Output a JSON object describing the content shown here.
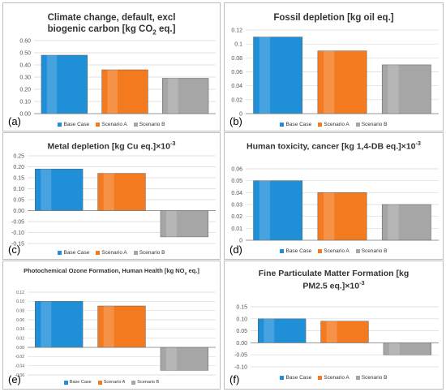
{
  "colors": {
    "base": "#1f8fd8",
    "a": "#f47a1f",
    "b": "#a6a6a6"
  },
  "legend": [
    "Base Case",
    "Scenario A",
    "Scenario B"
  ],
  "chart_data": [
    {
      "type": "bar",
      "panel_label": "(a)",
      "title_main": "Climate change, default, excl biogenic carbon [kg CO",
      "title_sub": "2",
      "title_end": " eq.]",
      "series": [
        {
          "name": "Base Case",
          "values": [
            0.48
          ]
        },
        {
          "name": "Scenario A",
          "values": [
            0.36
          ]
        },
        {
          "name": "Scenario B",
          "values": [
            0.29
          ]
        }
      ],
      "ylim": [
        0,
        0.6
      ],
      "yticks": [
        "0.00",
        "0.10",
        "0.20",
        "0.30",
        "0.40",
        "0.50",
        "0.60"
      ],
      "ystep": 0.1
    },
    {
      "type": "bar",
      "panel_label": "(b)",
      "title_main": "Fossil depletion [kg oil eq.]",
      "title_sub": "",
      "title_end": "",
      "series": [
        {
          "name": "Base Case",
          "values": [
            0.11
          ]
        },
        {
          "name": "Scenario A",
          "values": [
            0.09
          ]
        },
        {
          "name": "Scenario B",
          "values": [
            0.07
          ]
        }
      ],
      "ylim": [
        0,
        0.12
      ],
      "yticks": [
        "0",
        "0.02",
        "0.04",
        "0.06",
        "0.08",
        "0.1",
        "0.12"
      ],
      "ystep": 0.02
    },
    {
      "type": "bar",
      "panel_label": "(c)",
      "title_main": "Metal depletion [kg Cu eq.]×10",
      "title_sup": "-3",
      "title_end": "",
      "series": [
        {
          "name": "Base Case",
          "values": [
            0.19
          ]
        },
        {
          "name": "Scenario A",
          "values": [
            0.17
          ]
        },
        {
          "name": "Scenario B",
          "values": [
            -0.12
          ]
        }
      ],
      "ylim": [
        -0.15,
        0.25
      ],
      "yticks": [
        "-0.15",
        "-0.10",
        "-0.05",
        "0.00",
        "0.05",
        "0.10",
        "0.15",
        "0.20",
        "0.25"
      ],
      "ystep": 0.05
    },
    {
      "type": "bar",
      "panel_label": "(d)",
      "title_main": "Human toxicity, cancer [kg 1,4-DB eq.]×10",
      "title_sup": "-3",
      "title_end": "",
      "series": [
        {
          "name": "Base Case",
          "values": [
            0.05
          ]
        },
        {
          "name": "Scenario A",
          "values": [
            0.04
          ]
        },
        {
          "name": "Scenario B",
          "values": [
            0.03
          ]
        }
      ],
      "ylim": [
        0,
        0.06
      ],
      "yticks": [
        "0",
        "0.01",
        "0.02",
        "0.03",
        "0.04",
        "0.05",
        "0.06"
      ],
      "ystep": 0.01
    },
    {
      "type": "bar",
      "panel_label": "(e)",
      "title_main": "Photochemical Ozone Formation, Human Health [kg NO",
      "title_sub": "x",
      "title_end": " eq.]",
      "series": [
        {
          "name": "Base Case",
          "values": [
            0.1
          ]
        },
        {
          "name": "Scenario A",
          "values": [
            0.09
          ]
        },
        {
          "name": "Scenario B",
          "values": [
            -0.05
          ]
        }
      ],
      "ylim": [
        -0.06,
        0.12
      ],
      "yticks": [
        "-0.06",
        "-0.04",
        "-0.02",
        "0.00",
        "0.02",
        "0.04",
        "0.06",
        "0.08",
        "0.10",
        "0.12"
      ],
      "ystep": 0.02
    },
    {
      "type": "bar",
      "panel_label": "(f)",
      "title_main": "Fine Particulate Matter Formation [kg PM2.5 eq.]×10",
      "title_sup": "-3",
      "title_end": "",
      "series": [
        {
          "name": "Base Case",
          "values": [
            0.1
          ]
        },
        {
          "name": "Scenario A",
          "values": [
            0.09
          ]
        },
        {
          "name": "Scenario B",
          "values": [
            -0.05
          ]
        }
      ],
      "ylim": [
        -0.1,
        0.15
      ],
      "yticks": [
        "-0.10",
        "-0.05",
        "0.00",
        "0.05",
        "0.10",
        "0.15"
      ],
      "ystep": 0.05
    }
  ]
}
